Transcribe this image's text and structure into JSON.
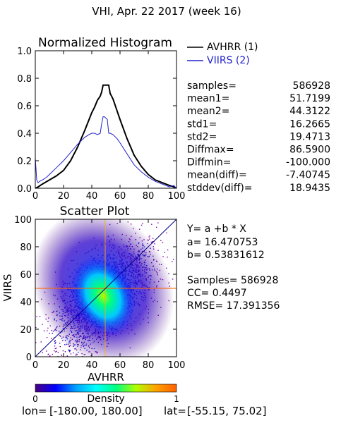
{
  "header": {
    "title": "VHI,  Apr. 22 2017 (week 16)"
  },
  "footer": {
    "lon_label": "lon=",
    "lon_range": "[-180.00, 180.00]",
    "lat_label": "lat=",
    "lat_range": "[-55.15, 75.02]"
  },
  "stats_panel": {
    "rows": [
      {
        "label": "samples=",
        "value": "586928"
      },
      {
        "label": "mean1=",
        "value": "51.7199"
      },
      {
        "label": "mean2=",
        "value": "44.3122"
      },
      {
        "label": "std1=",
        "value": "16.2665"
      },
      {
        "label": "std2=",
        "value": "19.4713"
      },
      {
        "label": "Diffmax=",
        "value": "86.5900"
      },
      {
        "label": "Diffmin=",
        "value": "-100.000"
      },
      {
        "label": "mean(diff)=",
        "value": "-7.40745"
      },
      {
        "label": "stddev(diff)=",
        "value": "18.9435"
      }
    ]
  },
  "regression_panel": {
    "equation": "Y= a +b * X",
    "a_line": "a= 16.470753",
    "b_line": "b= 0.53831612",
    "samples_line": "Samples= 586928",
    "cc_line": "CC=  0.4497",
    "rmse_line": "RMSE= 17.391356"
  },
  "colors": {
    "avhrr": "#000000",
    "viirs": "#2222cc",
    "cross": "#ff6600",
    "fit": "#000088"
  },
  "chart_data": [
    {
      "type": "line",
      "title": "Normalized Histogram",
      "xlim": [
        0,
        100
      ],
      "ylim": [
        0,
        1.0
      ],
      "xticks": [
        "0",
        "20",
        "40",
        "60",
        "80",
        "100"
      ],
      "yticks": [
        "0.0",
        "0.2",
        "0.4",
        "0.6",
        "0.8",
        "1.0"
      ],
      "legend_position": "right",
      "series": [
        {
          "name": "AVHRR (1)",
          "x": [
            0,
            2,
            5,
            10,
            15,
            20,
            25,
            30,
            35,
            40,
            42,
            44,
            46,
            47,
            48,
            49,
            50,
            51,
            52,
            53,
            54,
            55,
            56,
            58,
            60,
            65,
            70,
            75,
            80,
            85,
            90,
            95,
            98,
            100
          ],
          "y": [
            0,
            0.01,
            0.03,
            0.06,
            0.09,
            0.13,
            0.2,
            0.3,
            0.42,
            0.55,
            0.59,
            0.64,
            0.67,
            0.7,
            0.75,
            0.75,
            0.75,
            0.75,
            0.75,
            0.69,
            0.67,
            0.65,
            0.62,
            0.56,
            0.5,
            0.36,
            0.24,
            0.16,
            0.1,
            0.06,
            0.04,
            0.02,
            0.01,
            0.0
          ]
        },
        {
          "name": "VIIRS (2)",
          "x": [
            0,
            1,
            2,
            3,
            5,
            8,
            10,
            15,
            20,
            25,
            30,
            35,
            38,
            40,
            42,
            44,
            46,
            47,
            48,
            49,
            50,
            51,
            52,
            53,
            55,
            58,
            60,
            65,
            70,
            75,
            80,
            85,
            90,
            95,
            98,
            100
          ],
          "y": [
            0.22,
            0.06,
            0.04,
            0.05,
            0.06,
            0.08,
            0.1,
            0.15,
            0.2,
            0.26,
            0.32,
            0.37,
            0.39,
            0.4,
            0.4,
            0.39,
            0.4,
            0.47,
            0.52,
            0.52,
            0.51,
            0.5,
            0.4,
            0.4,
            0.39,
            0.36,
            0.33,
            0.25,
            0.17,
            0.12,
            0.08,
            0.05,
            0.03,
            0.01,
            0.02,
            0.0
          ]
        }
      ]
    },
    {
      "type": "scatter",
      "title": "Scatter Plot",
      "xlabel": "AVHRR",
      "ylabel": "VIIRS",
      "xlim": [
        0,
        100
      ],
      "ylim": [
        0,
        100
      ],
      "xticks": [
        "0",
        "20",
        "40",
        "60",
        "80",
        "100"
      ],
      "yticks": [
        "0",
        "20",
        "40",
        "60",
        "80",
        "100"
      ],
      "density_center": [
        48,
        44
      ],
      "fit_line": {
        "a": 16.470753,
        "b": 0.53831612
      }
    },
    {
      "type": "heatmap",
      "title": "Density",
      "colorbar_ticks": [
        "0",
        "1"
      ],
      "colorbar_stops": [
        "#4b0082",
        "#0000ff",
        "#00a0ff",
        "#00ffff",
        "#00ff80",
        "#b0ff00",
        "#ffa000",
        "#ff6000"
      ]
    }
  ]
}
